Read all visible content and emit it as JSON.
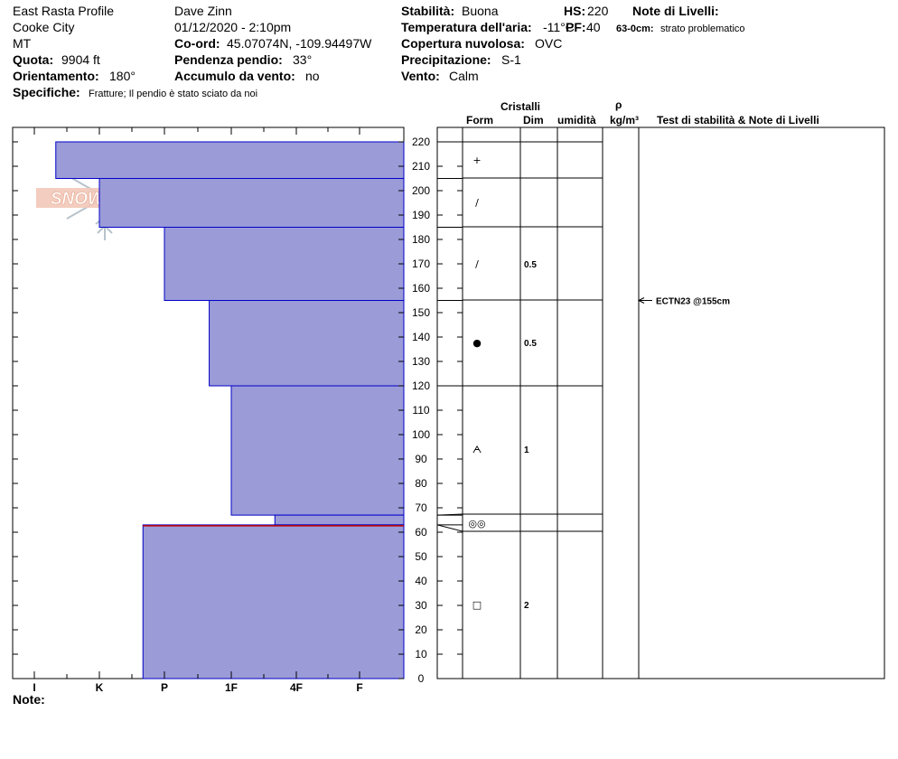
{
  "header": {
    "col1": {
      "profile_name": "East Rasta Profile",
      "location": "Cooke City",
      "state": "MT",
      "quota_label": "Quota:",
      "quota": "9904 ft",
      "orient_label": "Orientamento:",
      "orient": "180°",
      "specifiche_label": "Specifiche:",
      "specifiche": "Fratture;  Il pendio è stato sciato da noi"
    },
    "col2": {
      "observer": "Dave Zinn",
      "datetime": "01/12/2020 - 2:10pm",
      "coord_label": "Co-ord:",
      "coord": "45.07074N, -109.94497W",
      "pendenza_label": "Pendenza pendio:",
      "pendenza": "33°",
      "accumulo_label": "Accumulo da vento:",
      "accumulo": "no"
    },
    "col3": {
      "stabilita_label": "Stabilità:",
      "stabilita": "Buona",
      "temp_label": "Temperatura dell'aria:",
      "temp": "-11°C",
      "copertura_label": "Copertura nuvolosa:",
      "copertura": "OVC",
      "precip_label": "Precipitazione:",
      "precip": "S-1",
      "vento_label": "Vento:",
      "vento": "Calm"
    },
    "col4": {
      "hs_label": "HS:",
      "hs": "220",
      "pf_label": "PF:",
      "pf": "40"
    },
    "col5": {
      "note_livelli_label": "Note di Livelli:",
      "layer_note_depth": "63-0cm:",
      "layer_note_text": "strato problematico"
    }
  },
  "logo_text": "SNOW PILOT",
  "table_headers": {
    "cristalli": "Cristalli",
    "form": "Form",
    "dim": "Dim",
    "umidita": "umidità",
    "rho": "ρ",
    "density_unit": "kg/m³",
    "tests": "Test di stabilità & Note di Livelli"
  },
  "footer": {
    "note_label": "Note:"
  },
  "colors": {
    "layer_fill": "#9b9bd8",
    "layer_stroke": "#0000c8",
    "weak_layer": "#c00000"
  },
  "chart_data": {
    "type": "bar",
    "orientation": "horizontal-hardness-profile",
    "hardness_categories": [
      "I",
      "K",
      "P",
      "1F",
      "4F",
      "F"
    ],
    "y_axis_ticks": [
      0,
      10,
      20,
      30,
      40,
      50,
      60,
      70,
      80,
      90,
      100,
      110,
      120,
      130,
      140,
      150,
      160,
      170,
      180,
      190,
      200,
      210,
      220
    ],
    "y_range": [
      0,
      220
    ],
    "layers": [
      {
        "top": 220,
        "bottom": 205,
        "hardness": 0.33,
        "form": "+",
        "size": ""
      },
      {
        "top": 205,
        "bottom": 185,
        "hardness": 1.0,
        "form": "/",
        "size": ""
      },
      {
        "top": 185,
        "bottom": 155,
        "hardness": 2.0,
        "form": "/",
        "size": "0.5"
      },
      {
        "top": 155,
        "bottom": 120,
        "hardness": 2.67,
        "form": "●",
        "size": "0.5"
      },
      {
        "top": 120,
        "bottom": 67,
        "hardness": 3.0,
        "form": "ᗅ",
        "size": "1"
      },
      {
        "top": 67,
        "bottom": 63,
        "hardness": 3.67,
        "form": "◎◎",
        "size": ""
      },
      {
        "top": 63,
        "bottom": 0,
        "hardness": 1.67,
        "form": "□",
        "size": "2"
      }
    ],
    "weak_layer_depth": 63,
    "tests": [
      {
        "depth": 155,
        "label": "ECTN23 @155cm"
      }
    ]
  }
}
